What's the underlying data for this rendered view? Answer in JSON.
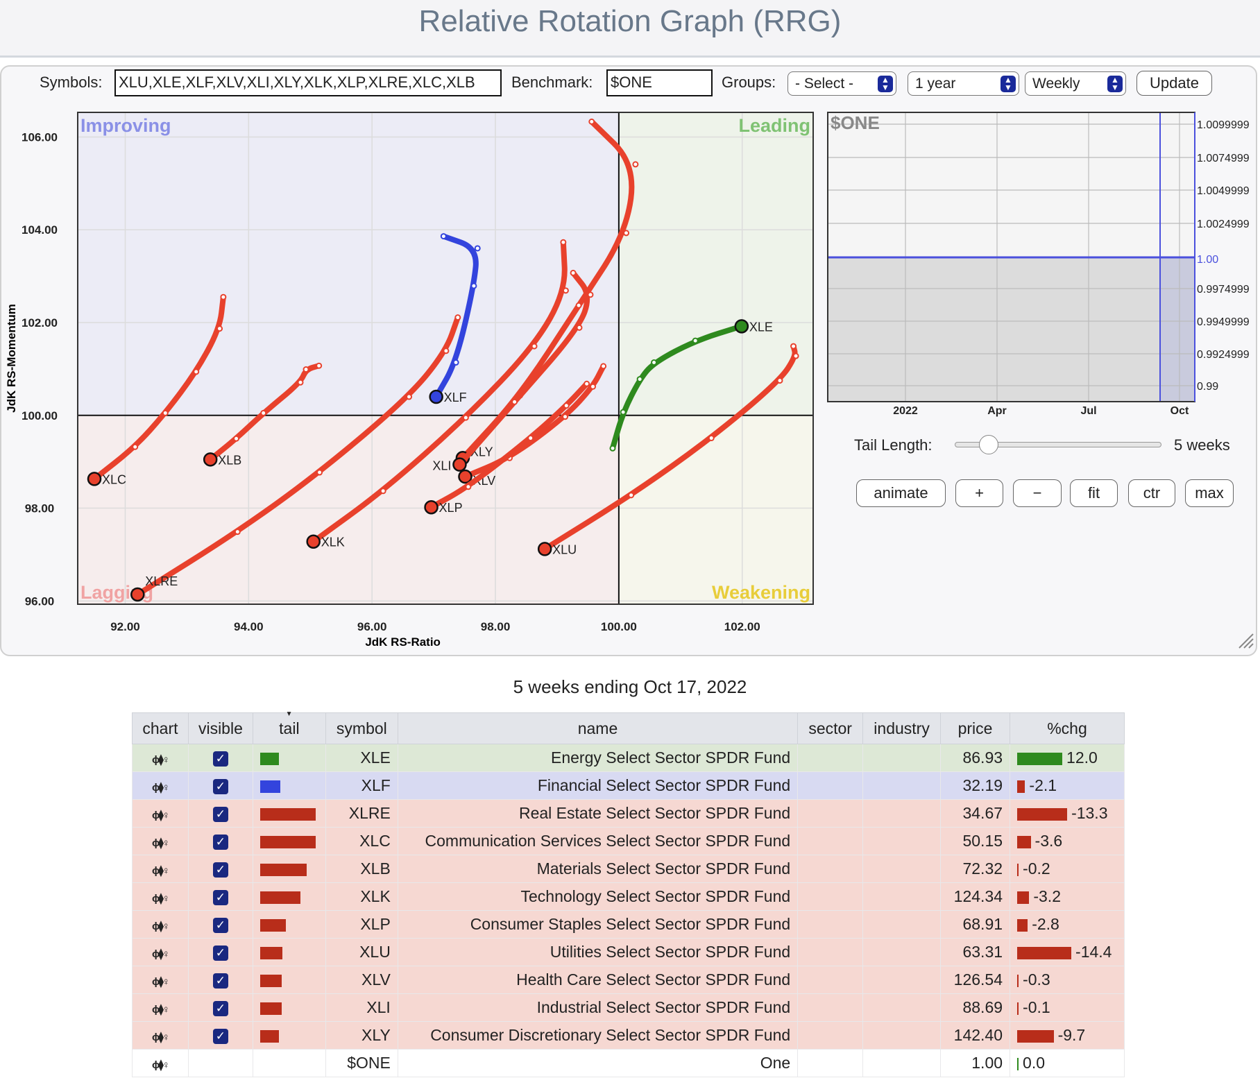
{
  "page_title": "Relative Rotation Graph (RRG)",
  "toolbar": {
    "symbols_label": "Symbols:",
    "symbols_value": "XLU,XLE,XLF,XLV,XLI,XLY,XLK,XLP,XLRE,XLC,XLB",
    "benchmark_label": "Benchmark:",
    "benchmark_value": "$ONE",
    "groups_label": "Groups:",
    "groups_value": "- Select -",
    "period_value": "1 year",
    "interval_value": "Weekly",
    "update_label": "Update"
  },
  "chart_data": {
    "type": "scatter",
    "xlabel": "JdK RS-Ratio",
    "ylabel": "JdK RS-Momentum",
    "xlim": [
      91.23,
      103.15
    ],
    "ylim": [
      95.93,
      106.53
    ],
    "xticks": [
      "92.00",
      "94.00",
      "96.00",
      "98.00",
      "100.00",
      "102.00"
    ],
    "yticks": [
      "96.00",
      "98.00",
      "100.00",
      "102.00",
      "104.00",
      "106.00"
    ],
    "quadrants": {
      "improving": "Improving",
      "leading": "Leading",
      "weakening": "Weakening",
      "lagging": "Lagging"
    },
    "series": [
      {
        "name": "XLE",
        "color": "#2e8a1e",
        "points": [
          [
            99.9,
            99.29
          ],
          [
            100.07,
            100.07
          ],
          [
            100.34,
            100.78
          ],
          [
            100.57,
            101.14
          ],
          [
            101.24,
            101.61
          ],
          [
            101.99,
            101.92
          ]
        ]
      },
      {
        "name": "XLF",
        "color": "#3344dd",
        "points": [
          [
            97.16,
            103.86
          ],
          [
            97.71,
            103.6
          ],
          [
            97.65,
            102.79
          ],
          [
            97.36,
            101.14
          ],
          [
            97.04,
            100.4
          ]
        ]
      },
      {
        "name": "XLU",
        "color": "#e8412c",
        "points": [
          [
            102.83,
            101.49
          ],
          [
            102.87,
            101.28
          ],
          [
            102.61,
            100.75
          ],
          [
            101.5,
            99.51
          ],
          [
            100.2,
            98.28
          ],
          [
            98.8,
            97.12
          ]
        ]
      },
      {
        "name": "XLC",
        "color": "#e8412c",
        "points": [
          [
            93.59,
            102.55
          ],
          [
            93.53,
            101.87
          ],
          [
            93.15,
            100.94
          ],
          [
            92.65,
            100.05
          ],
          [
            92.16,
            99.32
          ],
          [
            91.5,
            98.63
          ]
        ]
      },
      {
        "name": "XLB",
        "color": "#e8412c",
        "points": [
          [
            95.14,
            101.07
          ],
          [
            94.93,
            100.99
          ],
          [
            94.84,
            100.71
          ],
          [
            94.24,
            100.05
          ],
          [
            93.8,
            99.5
          ],
          [
            93.38,
            99.05
          ]
        ]
      },
      {
        "name": "XLRE",
        "color": "#e8412c",
        "points": [
          [
            97.39,
            102.11
          ],
          [
            97.2,
            101.39
          ],
          [
            96.6,
            100.4
          ],
          [
            95.15,
            98.77
          ],
          [
            93.82,
            97.49
          ],
          [
            92.2,
            96.14
          ]
        ]
      },
      {
        "name": "XLK",
        "color": "#e8412c",
        "points": [
          [
            99.1,
            103.73
          ],
          [
            99.14,
            102.69
          ],
          [
            98.63,
            101.49
          ],
          [
            97.52,
            99.95
          ],
          [
            96.18,
            98.37
          ],
          [
            95.05,
            97.28
          ]
        ]
      },
      {
        "name": "XLY",
        "color": "#e8412c",
        "points": [
          [
            99.56,
            106.33
          ],
          [
            100.27,
            105.41
          ],
          [
            100.12,
            103.93
          ],
          [
            99.35,
            102.37
          ],
          [
            98.4,
            100.43
          ],
          [
            97.47,
            99.08
          ]
        ]
      },
      {
        "name": "XLI",
        "color": "#e8412c",
        "points": [
          [
            99.26,
            103.07
          ],
          [
            99.54,
            102.6
          ],
          [
            99.36,
            101.89
          ],
          [
            98.31,
            100.29
          ],
          [
            97.42,
            98.94
          ]
        ]
      },
      {
        "name": "XLV",
        "color": "#e8412c",
        "points": [
          [
            99.75,
            101.06
          ],
          [
            99.58,
            100.62
          ],
          [
            99.13,
            99.97
          ],
          [
            98.23,
            99.08
          ],
          [
            97.51,
            98.68
          ]
        ]
      },
      {
        "name": "XLP",
        "color": "#e8412c",
        "points": [
          [
            99.48,
            100.68
          ],
          [
            99.15,
            100.21
          ],
          [
            98.57,
            99.51
          ],
          [
            97.56,
            98.46
          ],
          [
            96.96,
            98.02
          ]
        ]
      }
    ]
  },
  "mini_chart": {
    "title": "$ONE",
    "yticks": [
      "1.0099999",
      "1.0074999",
      "1.0049999",
      "1.0024999",
      "1.00",
      "0.9974999",
      "0.9949999",
      "0.9924999",
      "0.99"
    ],
    "xticks": [
      "2022",
      "Apr",
      "Jul",
      "Oct"
    ],
    "value": 1.0
  },
  "controls": {
    "tail_label": "Tail Length:",
    "tail_value": "5 weeks",
    "tail_slider_fraction": 0.16,
    "buttons": [
      "animate",
      "+",
      "−",
      "fit",
      "ctr",
      "max"
    ]
  },
  "table": {
    "caption": "5 weeks ending Oct 17, 2022",
    "headers": [
      "chart",
      "visible",
      "tail",
      "symbol",
      "name",
      "sector",
      "industry",
      "price",
      "%chg"
    ],
    "rows": [
      {
        "symbol": "XLE",
        "name": "Energy Select Sector SPDR Fund",
        "price": "86.93",
        "chg": "12.0",
        "tail": 0.34,
        "color": "#2e8a1e",
        "bg": "#dde8d6",
        "visible": true
      },
      {
        "symbol": "XLF",
        "name": "Financial Select Sector SPDR Fund",
        "price": "32.19",
        "chg": "-2.1",
        "tail": 0.37,
        "color": "#3344dd",
        "bg": "#d8daf2",
        "visible": true
      },
      {
        "symbol": "XLRE",
        "name": "Real Estate Select Sector SPDR Fund",
        "price": "34.67",
        "chg": "-13.3",
        "tail": 1.0,
        "color": "#b82d1a",
        "bg": "#f6d8d2",
        "visible": true
      },
      {
        "symbol": "XLC",
        "name": "Communication Services Select Sector SPDR Fund",
        "price": "50.15",
        "chg": "-3.6",
        "tail": 1.0,
        "color": "#b82d1a",
        "bg": "#f6d8d2",
        "visible": true
      },
      {
        "symbol": "XLB",
        "name": "Materials Select Sector SPDR Fund",
        "price": "72.32",
        "chg": "-0.2",
        "tail": 0.84,
        "color": "#b82d1a",
        "bg": "#f6d8d2",
        "visible": true
      },
      {
        "symbol": "XLK",
        "name": "Technology Select Sector SPDR Fund",
        "price": "124.34",
        "chg": "-3.2",
        "tail": 0.73,
        "color": "#b82d1a",
        "bg": "#f6d8d2",
        "visible": true
      },
      {
        "symbol": "XLP",
        "name": "Consumer Staples Select Sector SPDR Fund",
        "price": "68.91",
        "chg": "-2.8",
        "tail": 0.47,
        "color": "#b82d1a",
        "bg": "#f6d8d2",
        "visible": true
      },
      {
        "symbol": "XLU",
        "name": "Utilities Select Sector SPDR Fund",
        "price": "63.31",
        "chg": "-14.4",
        "tail": 0.4,
        "color": "#b82d1a",
        "bg": "#f6d8d2",
        "visible": true
      },
      {
        "symbol": "XLV",
        "name": "Health Care Select Sector SPDR Fund",
        "price": "126.54",
        "chg": "-0.3",
        "tail": 0.39,
        "color": "#b82d1a",
        "bg": "#f6d8d2",
        "visible": true
      },
      {
        "symbol": "XLI",
        "name": "Industrial Select Sector SPDR Fund",
        "price": "88.69",
        "chg": "-0.1",
        "tail": 0.39,
        "color": "#b82d1a",
        "bg": "#f6d8d2",
        "visible": true
      },
      {
        "symbol": "XLY",
        "name": "Consumer Discretionary Select Sector SPDR Fund",
        "price": "142.40",
        "chg": "-9.7",
        "tail": 0.34,
        "color": "#b82d1a",
        "bg": "#f6d8d2",
        "visible": true
      },
      {
        "symbol": "$ONE",
        "name": "One",
        "price": "1.00",
        "chg": "0.0",
        "tail": 0,
        "color": "#2e8a1e",
        "bg": "#ffffff",
        "visible": false
      }
    ]
  }
}
